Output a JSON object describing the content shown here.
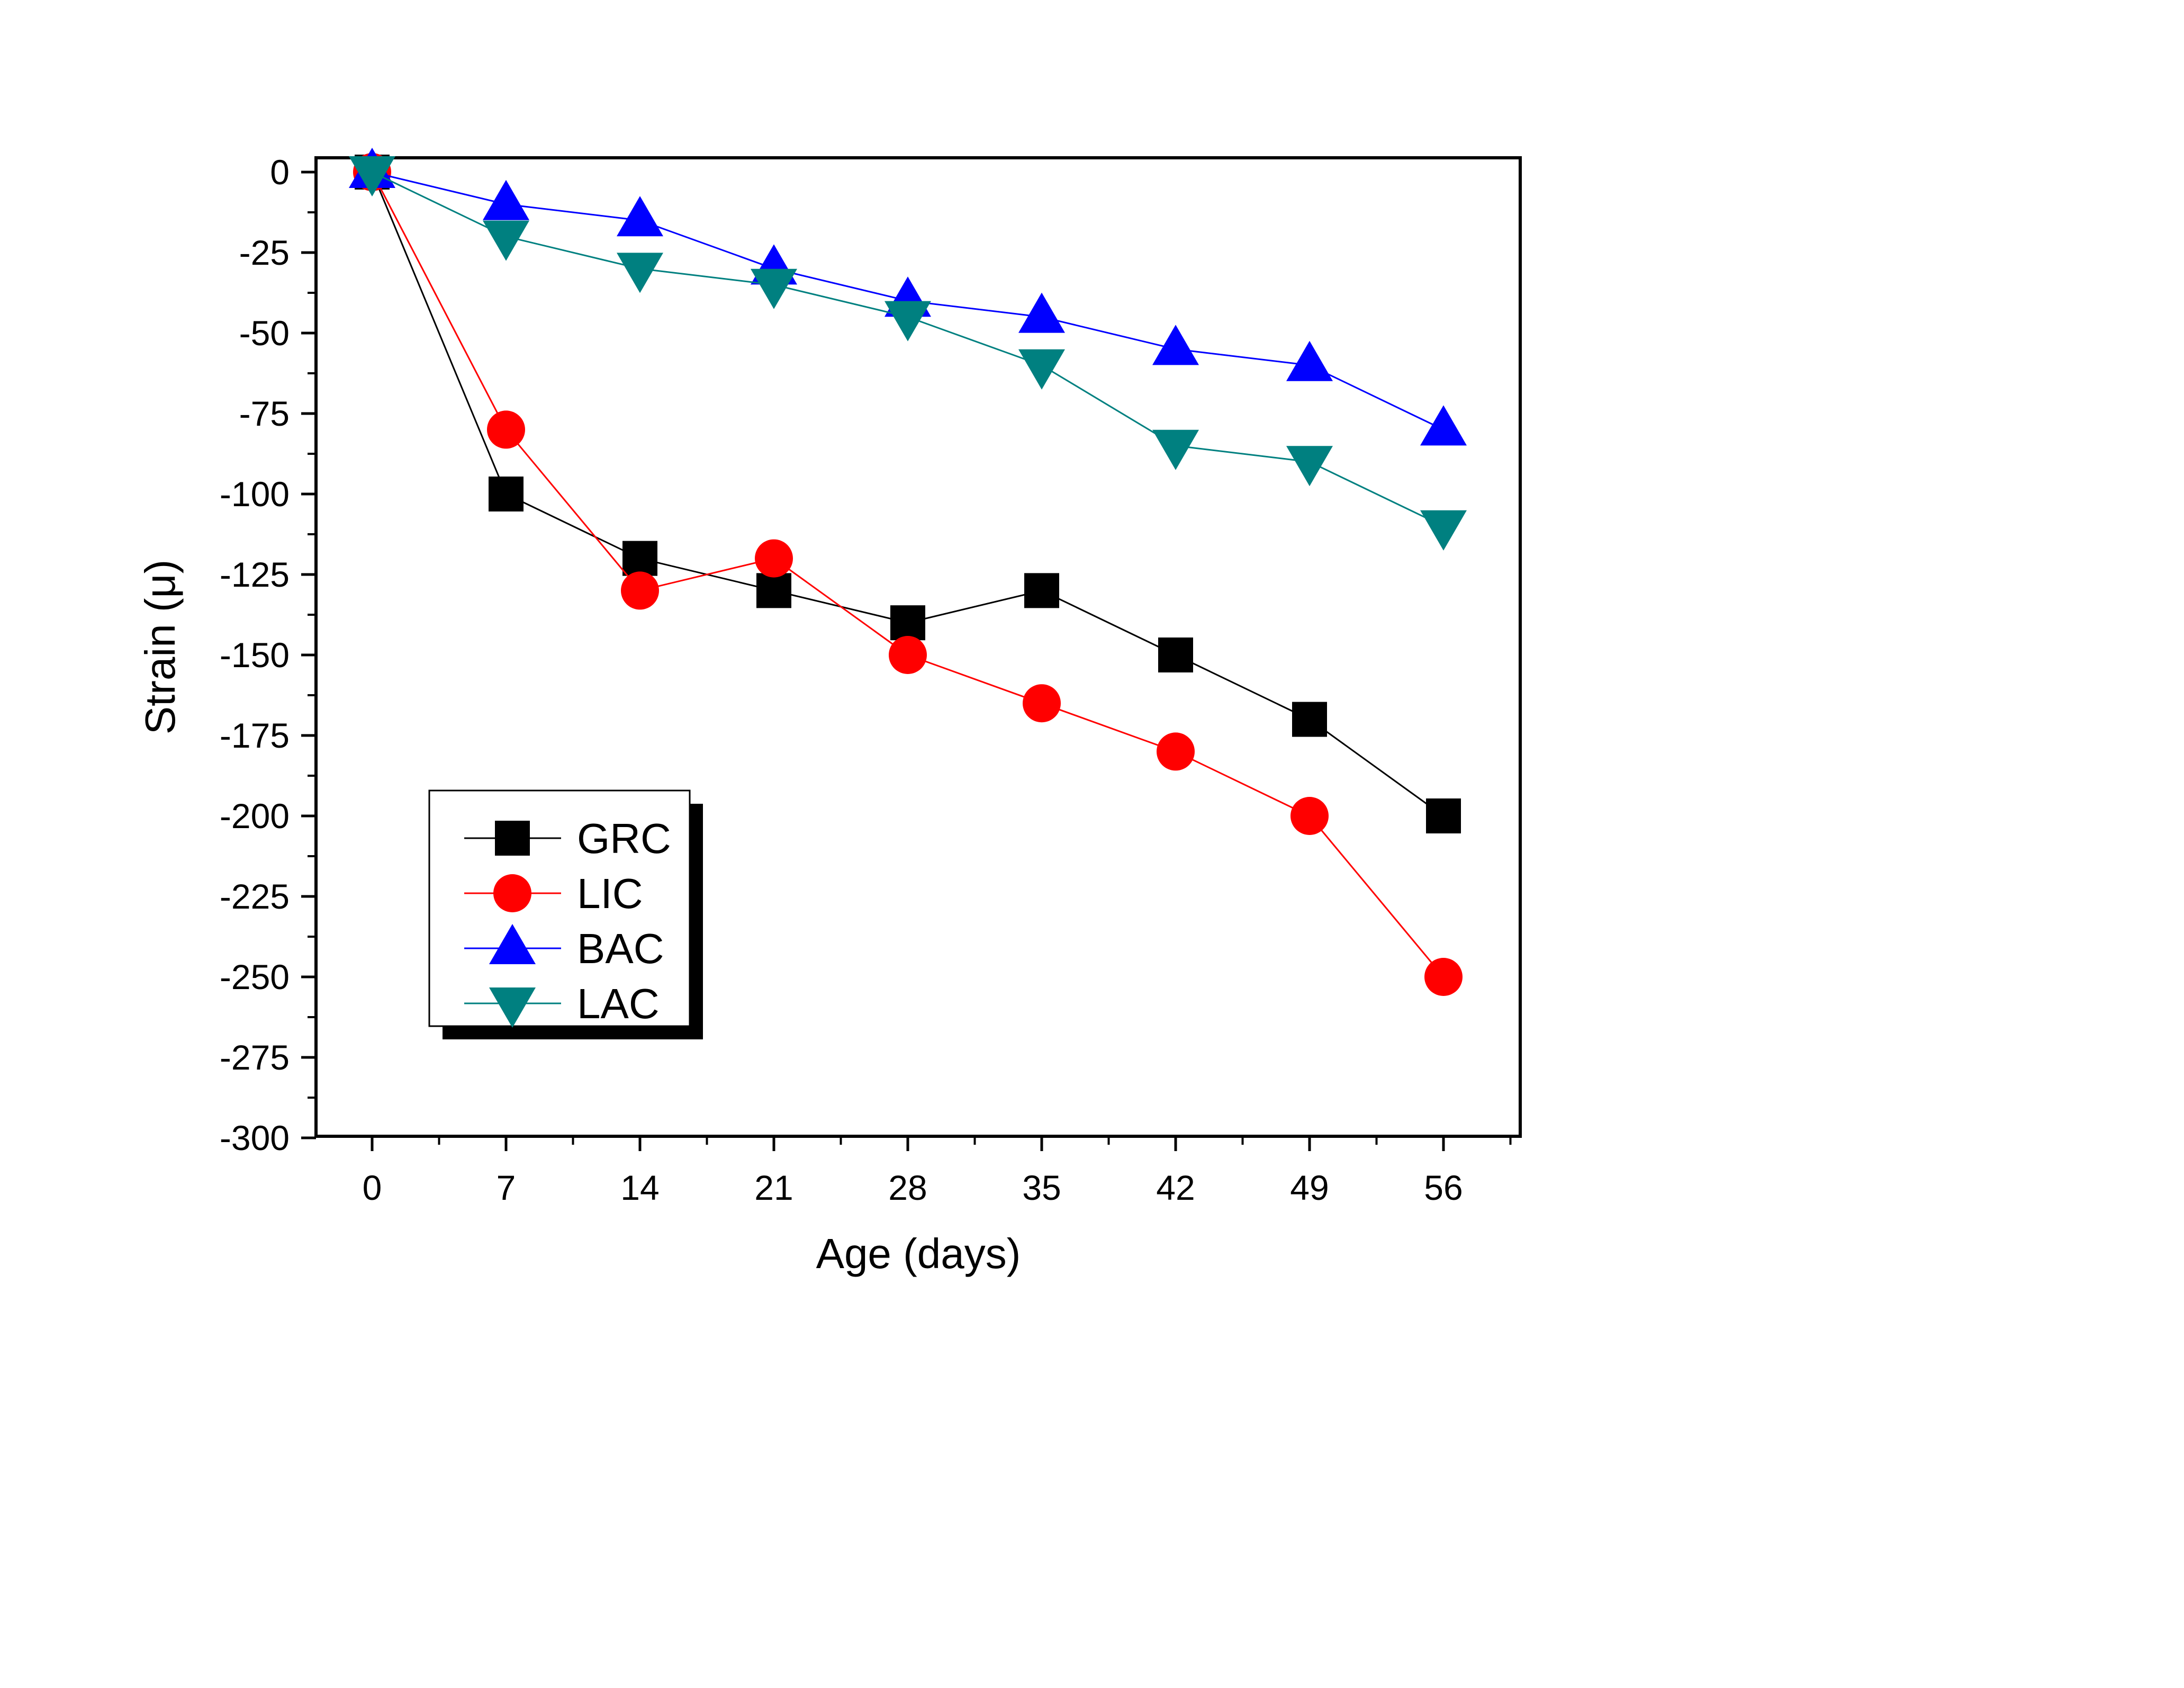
{
  "chart_data": {
    "type": "line",
    "xlabel": "Age (days)",
    "ylabel": "Strain (μ)",
    "x": [
      0,
      7,
      14,
      21,
      28,
      35,
      42,
      49,
      56
    ],
    "xticks": [
      "0",
      "7",
      "14",
      "21",
      "28",
      "35",
      "42",
      "49",
      "56"
    ],
    "xlim": [
      -3,
      60
    ],
    "ylim": [
      -300,
      5
    ],
    "yticks": [
      "0",
      "-25",
      "-50",
      "-75",
      "-100",
      "-125",
      "-150",
      "-175",
      "-200",
      "-225",
      "-250",
      "-275",
      "-300"
    ],
    "grid": false,
    "legend_position": "lower-left",
    "series": [
      {
        "name": "GRC",
        "color": "#000000",
        "marker": "square",
        "values": [
          0,
          -100,
          -120,
          -130,
          -140,
          -130,
          -150,
          -170,
          -200
        ]
      },
      {
        "name": "LIC",
        "color": "#ff0000",
        "marker": "circle",
        "values": [
          0,
          -80,
          -130,
          -120,
          -150,
          -165,
          -180,
          -200,
          -250
        ]
      },
      {
        "name": "BAC",
        "color": "#0000ff",
        "marker": "triangle-up",
        "values": [
          0,
          -10,
          -15,
          -30,
          -40,
          -45,
          -55,
          -60,
          -80
        ]
      },
      {
        "name": "LAC",
        "color": "#008080",
        "marker": "triangle-down",
        "values": [
          0,
          -20,
          -30,
          -35,
          -45,
          -60,
          -85,
          -90,
          -110
        ]
      }
    ]
  }
}
